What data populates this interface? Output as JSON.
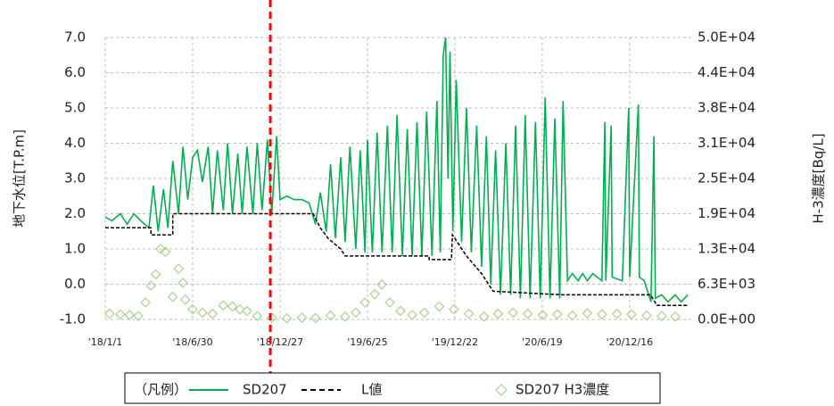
{
  "chart_data": {
    "type": "line",
    "y_label": "地下水位[T.P.m]",
    "y2_label": "H-3濃度[Bq/L]",
    "legend_title": "（凡例）",
    "xlim": [
      "2018-01-01",
      "2021-04-22"
    ],
    "xticks": [
      {
        "value": "2018-01-01",
        "label": "'18/1/1"
      },
      {
        "value": "2018-06-30",
        "label": "'18/6/30"
      },
      {
        "value": "2018-12-27",
        "label": "'18/12/27"
      },
      {
        "value": "2019-06-25",
        "label": "'19/6/25"
      },
      {
        "value": "2019-12-22",
        "label": "'19/12/22"
      },
      {
        "value": "2020-06-19",
        "label": "'20/6/19"
      },
      {
        "value": "2020-12-16",
        "label": "'20/12/16"
      }
    ],
    "ylim": [
      -1,
      7
    ],
    "yticks": [
      {
        "value": 7,
        "label": "7.0"
      },
      {
        "value": 6,
        "label": "6.0"
      },
      {
        "value": 5,
        "label": "5.0"
      },
      {
        "value": 4,
        "label": "4.0"
      },
      {
        "value": 3,
        "label": "3.0"
      },
      {
        "value": 2,
        "label": "2.0"
      },
      {
        "value": 1,
        "label": "1.0"
      },
      {
        "value": 0,
        "label": "0.0"
      },
      {
        "value": -1,
        "label": "-1.0"
      }
    ],
    "y2lim": [
      0,
      50000
    ],
    "y2ticks": [
      {
        "value": 50000,
        "label": "5.0E+04"
      },
      {
        "value": 43750,
        "label": "4.4E+04"
      },
      {
        "value": 37500,
        "label": "3.8E+04"
      },
      {
        "value": 31250,
        "label": "3.1E+04"
      },
      {
        "value": 25000,
        "label": "2.5E+04"
      },
      {
        "value": 18750,
        "label": "1.9E+04"
      },
      {
        "value": 12500,
        "label": "1.3E+04"
      },
      {
        "value": 6250,
        "label": "6.3E+03"
      },
      {
        "value": 0,
        "label": "0.0E+00"
      }
    ],
    "grid": true,
    "vline": {
      "x": "2018-12-07",
      "color": "#ff0000"
    },
    "series": [
      {
        "name": "SD207",
        "type": "line",
        "color": "#00b050",
        "x": [
          "2018-01-01",
          "2018-01-15",
          "2018-02-01",
          "2018-02-15",
          "2018-03-01",
          "2018-03-15",
          "2018-04-01",
          "2018-04-10",
          "2018-04-20",
          "2018-05-01",
          "2018-05-10",
          "2018-05-20",
          "2018-06-01",
          "2018-06-10",
          "2018-06-20",
          "2018-06-30",
          "2018-07-10",
          "2018-07-20",
          "2018-08-01",
          "2018-08-10",
          "2018-08-20",
          "2018-09-01",
          "2018-09-10",
          "2018-09-20",
          "2018-10-01",
          "2018-10-10",
          "2018-10-20",
          "2018-11-01",
          "2018-11-10",
          "2018-11-20",
          "2018-12-01",
          "2018-12-10",
          "2018-12-20",
          "2018-12-27",
          "2019-01-10",
          "2019-01-25",
          "2019-02-10",
          "2019-02-25",
          "2019-03-10",
          "2019-03-20",
          "2019-04-01",
          "2019-04-10",
          "2019-04-20",
          "2019-05-01",
          "2019-05-10",
          "2019-05-20",
          "2019-06-01",
          "2019-06-10",
          "2019-06-20",
          "2019-06-25",
          "2019-07-05",
          "2019-07-15",
          "2019-07-25",
          "2019-08-05",
          "2019-08-15",
          "2019-08-25",
          "2019-09-05",
          "2019-09-15",
          "2019-09-25",
          "2019-10-05",
          "2019-10-15",
          "2019-10-25",
          "2019-11-05",
          "2019-11-15",
          "2019-11-22",
          "2019-11-28",
          "2019-12-03",
          "2019-12-08",
          "2019-12-12",
          "2019-12-18",
          "2019-12-25",
          "2020-01-05",
          "2020-01-15",
          "2020-01-25",
          "2020-02-05",
          "2020-02-15",
          "2020-02-25",
          "2020-03-05",
          "2020-03-15",
          "2020-03-25",
          "2020-04-05",
          "2020-04-15",
          "2020-04-25",
          "2020-05-05",
          "2020-05-15",
          "2020-05-25",
          "2020-06-05",
          "2020-06-15",
          "2020-06-25",
          "2020-07-05",
          "2020-07-15",
          "2020-07-25",
          "2020-08-01",
          "2020-08-10",
          "2020-08-20",
          "2020-09-01",
          "2020-09-10",
          "2020-09-20",
          "2020-10-01",
          "2020-10-20",
          "2020-10-26",
          "2020-10-28",
          "2020-11-08",
          "2020-11-10",
          "2020-12-01",
          "2020-12-14",
          "2020-12-16",
          "2021-01-03",
          "2021-01-05",
          "2021-01-15",
          "2021-01-29",
          "2021-02-04",
          "2021-02-07",
          "2021-02-20",
          "2021-03-05",
          "2021-03-20",
          "2021-04-01",
          "2021-04-15"
        ],
        "values": [
          1.9,
          1.8,
          2.0,
          1.7,
          2.0,
          1.8,
          1.6,
          2.8,
          1.5,
          2.7,
          1.6,
          3.5,
          2.0,
          3.9,
          2.4,
          3.6,
          3.8,
          2.9,
          3.9,
          2.0,
          3.8,
          2.1,
          4.0,
          2.0,
          3.7,
          2.0,
          3.9,
          2.0,
          4.0,
          2.1,
          4.1,
          2.0,
          4.2,
          2.4,
          2.5,
          2.4,
          2.4,
          2.3,
          1.7,
          2.6,
          1.5,
          3.4,
          1.3,
          3.6,
          1.2,
          3.9,
          1.0,
          3.8,
          0.9,
          4.1,
          0.9,
          4.3,
          0.9,
          4.5,
          0.9,
          4.8,
          0.8,
          4.4,
          0.8,
          4.6,
          0.8,
          4.9,
          0.8,
          5.2,
          0.9,
          6.5,
          7.0,
          3.0,
          6.6,
          1.5,
          5.8,
          1.2,
          5.0,
          0.9,
          4.5,
          0.5,
          4.2,
          0.0,
          3.8,
          -0.3,
          4.0,
          -0.3,
          4.5,
          -0.4,
          4.8,
          -0.4,
          4.6,
          -0.4,
          5.3,
          -0.4,
          4.7,
          -0.4,
          5.2,
          0.1,
          0.3,
          0.1,
          0.3,
          0.1,
          0.3,
          0.1,
          4.6,
          0.1,
          4.5,
          0.2,
          0.1,
          5.0,
          0.2,
          5.1,
          0.2,
          0.1,
          -0.5,
          4.2,
          -0.4,
          -0.3,
          -0.5,
          -0.3,
          -0.5,
          -0.3
        ]
      },
      {
        "name": "L値",
        "type": "line",
        "dashed": true,
        "color": "#000000",
        "x": [
          "2018-01-01",
          "2018-04-05",
          "2018-04-05",
          "2018-05-20",
          "2018-05-20",
          "2019-03-05",
          "2019-03-20",
          "2019-04-05",
          "2019-05-01",
          "2019-05-10",
          "2019-10-30",
          "2019-10-30",
          "2019-12-15",
          "2019-12-17",
          "2020-01-15",
          "2020-02-15",
          "2020-03-10",
          "2020-08-01",
          "2021-01-28",
          "2021-02-10",
          "2021-04-15"
        ],
        "values": [
          1.6,
          1.6,
          1.4,
          1.4,
          2.0,
          2.0,
          1.6,
          1.3,
          1.0,
          0.8,
          0.8,
          0.7,
          0.7,
          1.4,
          0.8,
          0.3,
          -0.2,
          -0.3,
          -0.3,
          -0.6,
          -0.6
        ]
      },
      {
        "name": "SD207 H3濃度",
        "type": "scatter",
        "axis": "y2",
        "color": "#a9d18e",
        "x": [
          "2018-01-10",
          "2018-02-01",
          "2018-02-20",
          "2018-03-10",
          "2018-03-25",
          "2018-04-05",
          "2018-04-15",
          "2018-04-25",
          "2018-05-05",
          "2018-05-20",
          "2018-06-01",
          "2018-06-10",
          "2018-06-15",
          "2018-06-30",
          "2018-07-20",
          "2018-08-10",
          "2018-09-01",
          "2018-09-20",
          "2018-10-05",
          "2018-10-20",
          "2018-11-10",
          "2018-12-10",
          "2019-01-10",
          "2019-02-10",
          "2019-03-10",
          "2019-04-10",
          "2019-05-10",
          "2019-06-01",
          "2019-06-20",
          "2019-07-10",
          "2019-07-25",
          "2019-08-10",
          "2019-09-01",
          "2019-09-25",
          "2019-10-20",
          "2019-11-20",
          "2019-12-20",
          "2020-01-20",
          "2020-02-20",
          "2020-03-20",
          "2020-04-20",
          "2020-05-20",
          "2020-06-20",
          "2020-07-20",
          "2020-08-20",
          "2020-09-20",
          "2020-10-20",
          "2020-11-20",
          "2020-12-20",
          "2021-01-20",
          "2021-02-20",
          "2021-03-20"
        ],
        "values": [
          1000,
          900,
          800,
          600,
          3000,
          6000,
          8000,
          12500,
          12000,
          4000,
          9000,
          6500,
          3500,
          1800,
          1200,
          1000,
          2500,
          2300,
          1800,
          1500,
          600,
          300,
          200,
          300,
          250,
          700,
          500,
          1200,
          3000,
          4500,
          6200,
          3000,
          1500,
          800,
          1200,
          2300,
          1800,
          1000,
          500,
          1000,
          1200,
          1000,
          800,
          900,
          700,
          1100,
          900,
          1000,
          900,
          700,
          600,
          500
        ]
      }
    ]
  }
}
